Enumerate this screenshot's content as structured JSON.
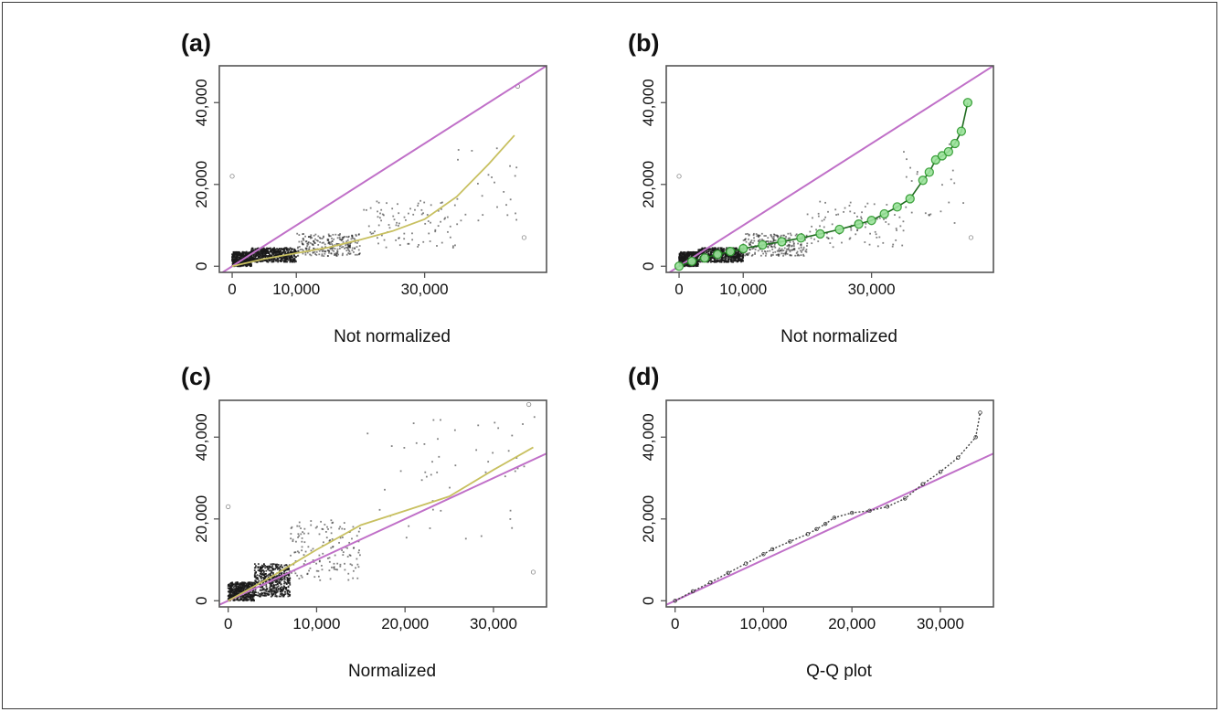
{
  "chart_data": [
    {
      "panel": "(a)",
      "type": "scatter",
      "xlabel": "Not normalized",
      "x_ticks": [
        0,
        10000,
        30000
      ],
      "x_tick_labels": [
        "0",
        "10,000",
        "30,000"
      ],
      "y_ticks": [
        0,
        20000,
        40000
      ],
      "y_tick_labels": [
        "0",
        "20,000",
        "40,000"
      ],
      "xlim": [
        -2000,
        49000
      ],
      "ylim": [
        -1500,
        49000
      ],
      "identity_line": true,
      "colors": {
        "points": "#1a1a1a",
        "identity": "#c070c8",
        "fit": "#c8c060"
      },
      "fit_curve": {
        "x": [
          0,
          5000,
          10000,
          15000,
          20000,
          25000,
          30000,
          35000,
          40000,
          44000
        ],
        "y": [
          0,
          1800,
          3200,
          4600,
          6500,
          8600,
          11500,
          17000,
          25000,
          32000
        ]
      },
      "scatter_groups": [
        {
          "x_range": [
            0,
            3000
          ],
          "y_range": [
            0,
            3500
          ],
          "n": 500
        },
        {
          "x_range": [
            3000,
            10000
          ],
          "y_range": [
            1000,
            4500
          ],
          "n": 600
        },
        {
          "x_range": [
            10000,
            20000
          ],
          "y_range": [
            2500,
            8000
          ],
          "n": 250
        },
        {
          "x_range": [
            20000,
            35000
          ],
          "y_range": [
            4500,
            16000
          ],
          "n": 90
        },
        {
          "x_range": [
            35000,
            45000
          ],
          "y_range": [
            10000,
            30000
          ],
          "n": 25
        }
      ],
      "outliers": [
        {
          "x": 44500,
          "y": 44000
        },
        {
          "x": 45500,
          "y": 7000
        },
        {
          "x": 0,
          "y": 22000
        }
      ]
    },
    {
      "panel": "(b)",
      "type": "scatter",
      "xlabel": "Not normalized",
      "x_ticks": [
        0,
        10000,
        30000
      ],
      "x_tick_labels": [
        "0",
        "10,000",
        "30,000"
      ],
      "y_ticks": [
        0,
        20000,
        40000
      ],
      "y_tick_labels": [
        "0",
        "20,000",
        "40,000"
      ],
      "xlim": [
        -2000,
        49000
      ],
      "ylim": [
        -1500,
        49000
      ],
      "identity_line": true,
      "colors": {
        "points": "#1a1a1a",
        "identity": "#c070c8",
        "quantiles": "#2e9b2e"
      },
      "quantile_points": {
        "x": [
          0,
          2000,
          4000,
          6000,
          8000,
          10000,
          13000,
          16000,
          19000,
          22000,
          25000,
          28000,
          30000,
          32000,
          34000,
          36000,
          38000,
          39000,
          40000,
          41000,
          42000,
          43000,
          44000,
          45000
        ],
        "y": [
          0,
          1200,
          2000,
          2900,
          3600,
          4300,
          5200,
          6000,
          6900,
          7900,
          9000,
          10300,
          11200,
          12800,
          14500,
          16500,
          21000,
          23000,
          26000,
          27000,
          28000,
          30000,
          33000,
          40000
        ]
      },
      "scatter_groups": [
        {
          "x_range": [
            0,
            3000
          ],
          "y_range": [
            0,
            3500
          ],
          "n": 500
        },
        {
          "x_range": [
            3000,
            10000
          ],
          "y_range": [
            1000,
            4500
          ],
          "n": 600
        },
        {
          "x_range": [
            10000,
            20000
          ],
          "y_range": [
            2500,
            8000
          ],
          "n": 250
        },
        {
          "x_range": [
            20000,
            35000
          ],
          "y_range": [
            4500,
            16000
          ],
          "n": 90
        },
        {
          "x_range": [
            35000,
            45000
          ],
          "y_range": [
            10000,
            30000
          ],
          "n": 25
        }
      ],
      "outliers": [
        {
          "x": 45500,
          "y": 7000
        },
        {
          "x": 0,
          "y": 22000
        }
      ]
    },
    {
      "panel": "(c)",
      "type": "scatter",
      "xlabel": "Normalized",
      "x_ticks": [
        0,
        10000,
        20000,
        30000
      ],
      "x_tick_labels": [
        "0",
        "10,000",
        "20,000",
        "30,000"
      ],
      "y_ticks": [
        0,
        20000,
        40000
      ],
      "y_tick_labels": [
        "0",
        "20,000",
        "40,000"
      ],
      "xlim": [
        -1000,
        36000
      ],
      "ylim": [
        -1500,
        49000
      ],
      "identity_line": true,
      "colors": {
        "points": "#1a1a1a",
        "identity": "#c070c8",
        "fit": "#c8c060"
      },
      "fit_curve": {
        "x": [
          0,
          5000,
          10000,
          15000,
          20000,
          25000,
          30000,
          34500
        ],
        "y": [
          0,
          6000,
          12500,
          18500,
          22000,
          25500,
          32000,
          37500
        ]
      },
      "scatter_groups": [
        {
          "x_range": [
            0,
            3000
          ],
          "y_range": [
            0,
            4500
          ],
          "n": 500
        },
        {
          "x_range": [
            3000,
            7000
          ],
          "y_range": [
            1000,
            9000
          ],
          "n": 500
        },
        {
          "x_range": [
            7000,
            15000
          ],
          "y_range": [
            5000,
            20000
          ],
          "n": 150
        },
        {
          "x_range": [
            15000,
            35000
          ],
          "y_range": [
            15000,
            45000
          ],
          "n": 50
        }
      ],
      "outliers": [
        {
          "x": 34000,
          "y": 48000
        },
        {
          "x": 34500,
          "y": 7000
        },
        {
          "x": 0,
          "y": 23000
        }
      ]
    },
    {
      "panel": "(d)",
      "type": "scatter",
      "xlabel": "Q-Q plot",
      "x_ticks": [
        0,
        10000,
        20000,
        30000
      ],
      "x_tick_labels": [
        "0",
        "10,000",
        "20,000",
        "30,000"
      ],
      "y_ticks": [
        0,
        20000,
        40000
      ],
      "y_tick_labels": [
        "0",
        "20,000",
        "40,000"
      ],
      "xlim": [
        -1000,
        36000
      ],
      "ylim": [
        -1500,
        49000
      ],
      "identity_line": true,
      "colors": {
        "points": "#333333",
        "identity": "#c070c8"
      },
      "qq_points": {
        "x": [
          0,
          2000,
          4000,
          6000,
          8000,
          10000,
          11000,
          13000,
          15000,
          16000,
          17000,
          18000,
          20000,
          22000,
          24000,
          26000,
          28000,
          30000,
          32000,
          34000,
          34500
        ],
        "y": [
          0,
          2300,
          4500,
          6800,
          9100,
          11400,
          12600,
          14500,
          16300,
          17500,
          18800,
          20300,
          21500,
          22000,
          23000,
          25000,
          28500,
          31500,
          35000,
          40000,
          46000
        ]
      }
    }
  ]
}
